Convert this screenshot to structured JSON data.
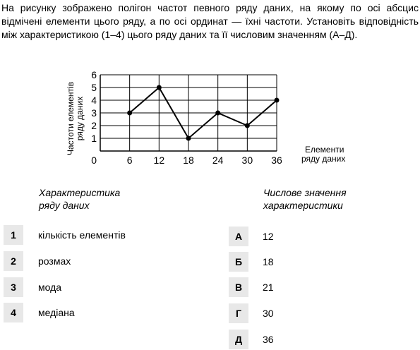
{
  "problem": {
    "text": "На рисунку зображено полігон частот певного ряду даних, на якому по осі абсцис відмічені елементи цього ряду, а по осі ординат — їхні частоти. Установіть відповідність між характеристикою (1–4) цього ряду даних та її числовим значенням (А–Д)."
  },
  "chart_data": {
    "type": "line",
    "x": [
      6,
      12,
      18,
      24,
      30,
      36
    ],
    "y": [
      3,
      5,
      1,
      3,
      2,
      4
    ],
    "xlabel": [
      "Елементи",
      "ряду даних"
    ],
    "ylabel": [
      "Частоти елементів",
      "ряду даних"
    ],
    "xticks": [
      6,
      12,
      18,
      24,
      30,
      36
    ],
    "yticks": [
      1,
      2,
      3,
      4,
      5,
      6
    ],
    "origin_label": "0",
    "xlim": [
      0,
      36
    ],
    "ylim": [
      0,
      6
    ],
    "grid": true,
    "markers": true
  },
  "left_column": {
    "heading_line1": "Характеристика",
    "heading_line2": "ряду даних",
    "items": [
      {
        "num": "1",
        "text": "кількість елементів"
      },
      {
        "num": "2",
        "text": "розмах"
      },
      {
        "num": "3",
        "text": "мода"
      },
      {
        "num": "4",
        "text": "медіана"
      }
    ]
  },
  "right_column": {
    "heading_line1": "Числове значення",
    "heading_line2": "характеристики",
    "items": [
      {
        "letter": "А",
        "value": "12"
      },
      {
        "letter": "Б",
        "value": "18"
      },
      {
        "letter": "В",
        "value": "21"
      },
      {
        "letter": "Г",
        "value": "30"
      },
      {
        "letter": "Д",
        "value": "36"
      }
    ]
  },
  "colors": {
    "badge_bg": "#e8e8e8",
    "line": "#000000"
  }
}
